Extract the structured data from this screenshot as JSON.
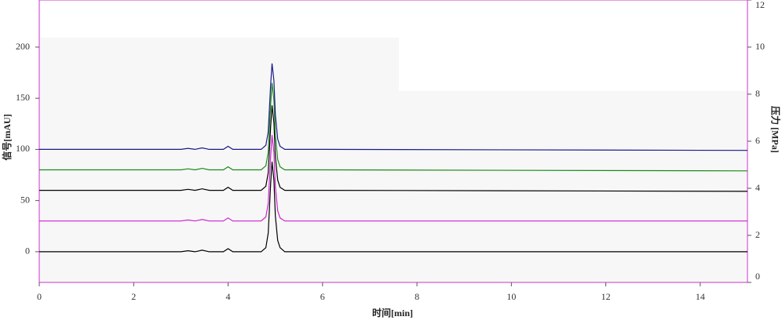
{
  "chart_data": {
    "type": "line",
    "x_label": "时间[min]",
    "y_label": "信号[mAU]",
    "y2_label": "压力 [MPa]",
    "x": [
      0,
      3.0,
      3.15,
      3.3,
      3.45,
      3.6,
      3.9,
      4.0,
      4.1,
      4.7,
      4.8,
      4.85,
      4.9,
      4.93,
      4.97,
      5.0,
      5.05,
      5.1,
      5.2,
      6,
      15
    ],
    "series": [
      {
        "color": "#000000",
        "values": [
          0,
          0,
          1,
          0,
          1.5,
          0,
          0,
          3,
          0,
          0,
          4,
          18,
          66,
          88,
          70,
          35,
          11,
          4,
          0,
          0,
          0
        ]
      },
      {
        "color": "#d020d0",
        "values": [
          30,
          30,
          31,
          30,
          31.5,
          30,
          30,
          33,
          30,
          30,
          34,
          47,
          93,
          114,
          97,
          64,
          40,
          33,
          30,
          30,
          30
        ]
      },
      {
        "color": "#000000",
        "values": [
          60,
          60,
          61,
          60,
          61.5,
          60,
          60,
          63,
          60,
          60,
          64,
          77,
          122,
          143,
          126,
          93,
          70,
          63,
          60,
          60,
          59
        ]
      },
      {
        "color": "#1a8a1a",
        "values": [
          80,
          80,
          81,
          80,
          81.5,
          80,
          80,
          83,
          80,
          80,
          84,
          97,
          144,
          165,
          148,
          114,
          90,
          83,
          80,
          80,
          79
        ]
      },
      {
        "color": "#1a1a8a",
        "values": [
          100,
          100,
          101,
          100,
          101.5,
          100,
          100,
          103,
          100,
          100,
          104,
          117,
          163,
          184,
          167,
          134,
          110,
          103,
          100,
          100,
          99
        ]
      }
    ],
    "xlim": [
      0,
      15
    ],
    "xticks": [
      0,
      2,
      4,
      6,
      8,
      10,
      12,
      14
    ],
    "ylim": [
      -30,
      246
    ],
    "yticks": [
      0,
      50,
      100,
      150,
      200
    ],
    "y2lim": [
      0,
      12
    ],
    "y2ticks": [
      0,
      2,
      4,
      6,
      8,
      10,
      12
    ]
  }
}
